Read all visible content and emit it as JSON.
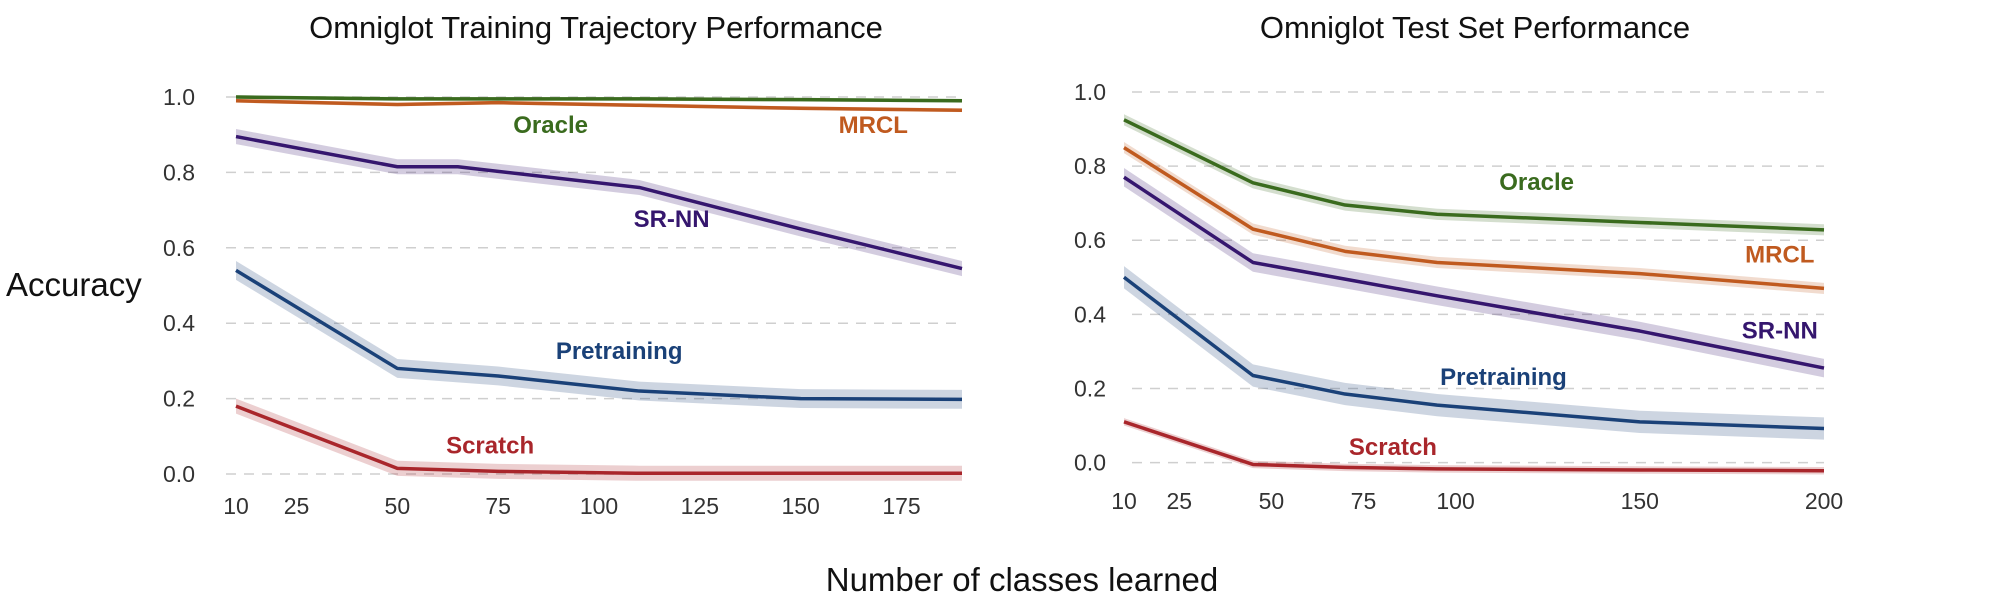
{
  "figure": {
    "ylabel": "Accuracy",
    "xlabel": "Number of classes learned"
  },
  "chart_data": [
    {
      "type": "line",
      "title": "Omniglot Training Trajectory Performance",
      "xlim": [
        10,
        190
      ],
      "ylim": [
        0,
        1
      ],
      "x_ticks": [
        10,
        25,
        50,
        75,
        100,
        125,
        150,
        175
      ],
      "y_ticks": [
        "0.0",
        "0.2",
        "0.4",
        "0.6",
        "0.8",
        "1.0"
      ],
      "grid": true,
      "series": [
        {
          "name": "Oracle",
          "color": "#3a6b1e",
          "band": 0.005,
          "x": [
            10,
            50,
            75,
            110,
            150,
            190
          ],
          "y": [
            1.0,
            0.995,
            0.995,
            0.995,
            0.993,
            0.99
          ],
          "label_at": [
            88,
            0.905
          ]
        },
        {
          "name": "MRCL",
          "color": "#c05a1f",
          "band": 0.005,
          "x": [
            10,
            50,
            75,
            110,
            150,
            190
          ],
          "y": [
            0.99,
            0.98,
            0.985,
            0.978,
            0.97,
            0.965
          ],
          "label_at": [
            168,
            0.905
          ]
        },
        {
          "name": "SR-NN",
          "color": "#35166e",
          "band": 0.02,
          "x": [
            10,
            50,
            65,
            110,
            150,
            190
          ],
          "y": [
            0.895,
            0.815,
            0.815,
            0.76,
            0.65,
            0.545
          ],
          "label_at": [
            118,
            0.655
          ]
        },
        {
          "name": "Pretraining",
          "color": "#1a4178",
          "band": 0.025,
          "x": [
            10,
            50,
            75,
            110,
            150,
            190
          ],
          "y": [
            0.54,
            0.28,
            0.26,
            0.22,
            0.2,
            0.198
          ],
          "label_at": [
            105,
            0.305
          ]
        },
        {
          "name": "Scratch",
          "color": "#a9262b",
          "band": 0.02,
          "x": [
            10,
            50,
            75,
            110,
            150,
            190
          ],
          "y": [
            0.18,
            0.015,
            0.007,
            0.002,
            0.002,
            0.002
          ],
          "label_at": [
            73,
            0.055
          ]
        }
      ]
    },
    {
      "type": "line",
      "title": "Omniglot Test Set Performance",
      "xlim": [
        10,
        200
      ],
      "ylim": [
        -0.02,
        1.0
      ],
      "x_ticks": [
        10,
        25,
        50,
        75,
        100,
        150,
        200
      ],
      "y_ticks": [
        "0.0",
        "0.2",
        "0.4",
        "0.6",
        "0.8",
        "1.0"
      ],
      "grid": true,
      "series": [
        {
          "name": "Oracle",
          "color": "#3a6b1e",
          "band": 0.015,
          "x": [
            10,
            45,
            70,
            95,
            150,
            200
          ],
          "y": [
            0.925,
            0.755,
            0.695,
            0.67,
            0.648,
            0.628
          ],
          "label_at": [
            122,
            0.735
          ]
        },
        {
          "name": "MRCL",
          "color": "#c05a1f",
          "band": 0.015,
          "x": [
            10,
            45,
            70,
            95,
            150,
            200
          ],
          "y": [
            0.85,
            0.63,
            0.57,
            0.54,
            0.51,
            0.47
          ],
          "label_at": [
            188,
            0.54
          ]
        },
        {
          "name": "SR-NN",
          "color": "#35166e",
          "band": 0.025,
          "x": [
            10,
            45,
            70,
            95,
            150,
            200
          ],
          "y": [
            0.77,
            0.54,
            0.495,
            0.45,
            0.355,
            0.255
          ],
          "label_at": [
            188,
            0.335
          ]
        },
        {
          "name": "Pretraining",
          "color": "#1a4178",
          "band": 0.03,
          "x": [
            10,
            45,
            70,
            95,
            150,
            200
          ],
          "y": [
            0.5,
            0.235,
            0.185,
            0.155,
            0.11,
            0.092
          ],
          "label_at": [
            113,
            0.21
          ]
        },
        {
          "name": "Scratch",
          "color": "#a9262b",
          "band": 0.01,
          "x": [
            10,
            45,
            70,
            95,
            150,
            200
          ],
          "y": [
            0.11,
            -0.005,
            -0.013,
            -0.017,
            -0.02,
            -0.022
          ],
          "label_at": [
            83,
            0.02
          ]
        }
      ]
    }
  ]
}
